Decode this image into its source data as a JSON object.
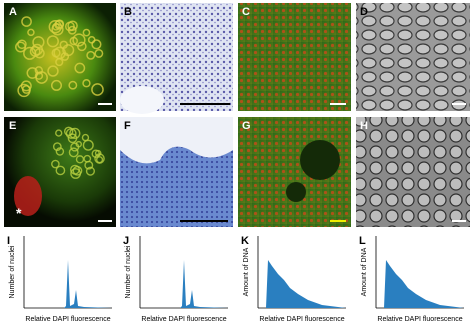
{
  "panels": [
    {
      "label": "A"
    },
    {
      "label": "B"
    },
    {
      "label": "C"
    },
    {
      "label": "D"
    },
    {
      "label": "E"
    },
    {
      "label": "F"
    },
    {
      "label": "G"
    },
    {
      "label": "H"
    }
  ],
  "asterisk": "*",
  "histograms": [
    {
      "label": "I",
      "y_label": "Number of nuclei",
      "x_label": "Relative DAPI fluorescence"
    },
    {
      "label": "J",
      "y_label": "Number of nuclei",
      "x_label": "Relative DAPI fluorescence"
    },
    {
      "label": "K",
      "y_label": "Amount of DNA",
      "x_label": "Relative DAPI fluorescence"
    },
    {
      "label": "L",
      "y_label": "Amount of DNA",
      "x_label": "Relative DAPI fluorescence"
    }
  ]
}
